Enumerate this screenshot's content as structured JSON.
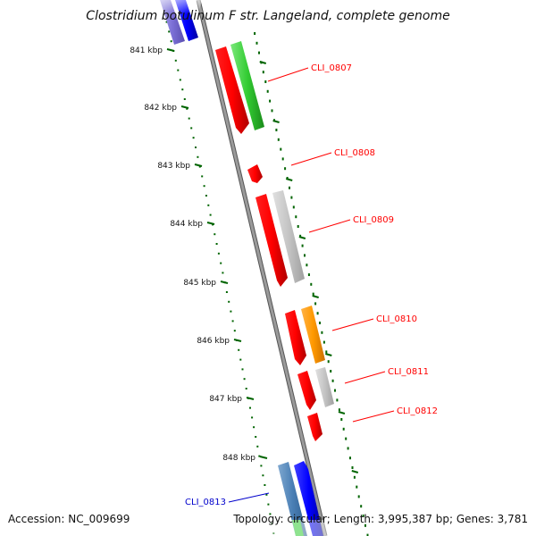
{
  "title": "Clostridium botulinum F str. Langeland, complete genome",
  "footer": {
    "accession": "Accession: NC_009699",
    "summary": "Topology: circular; Length: 3,995,387 bp; Genes: 3,781"
  },
  "ruler": {
    "ticks": [
      "841 kbp",
      "842 kbp",
      "843 kbp",
      "844 kbp",
      "845 kbp",
      "846 kbp",
      "847 kbp",
      "848 kbp"
    ]
  },
  "colors": {
    "backbone": "#808080",
    "forward_cds": "#ff0000",
    "tick": "#006400",
    "label_red": "#cc0000",
    "label_blue": "#0000cc"
  },
  "genes": [
    {
      "label": "CLI_0807",
      "color": "#ff0000"
    },
    {
      "label": "CLI_0808",
      "color": "#ff0000"
    },
    {
      "label": "CLI_0809",
      "color": "#ff0000"
    },
    {
      "label": "CLI_0810",
      "color": "#ff0000"
    },
    {
      "label": "CLI_0811",
      "color": "#ff0000"
    },
    {
      "label": "CLI_0812",
      "color": "#ff0000"
    },
    {
      "label": "CLI_0813",
      "color": "#0000cc"
    }
  ]
}
